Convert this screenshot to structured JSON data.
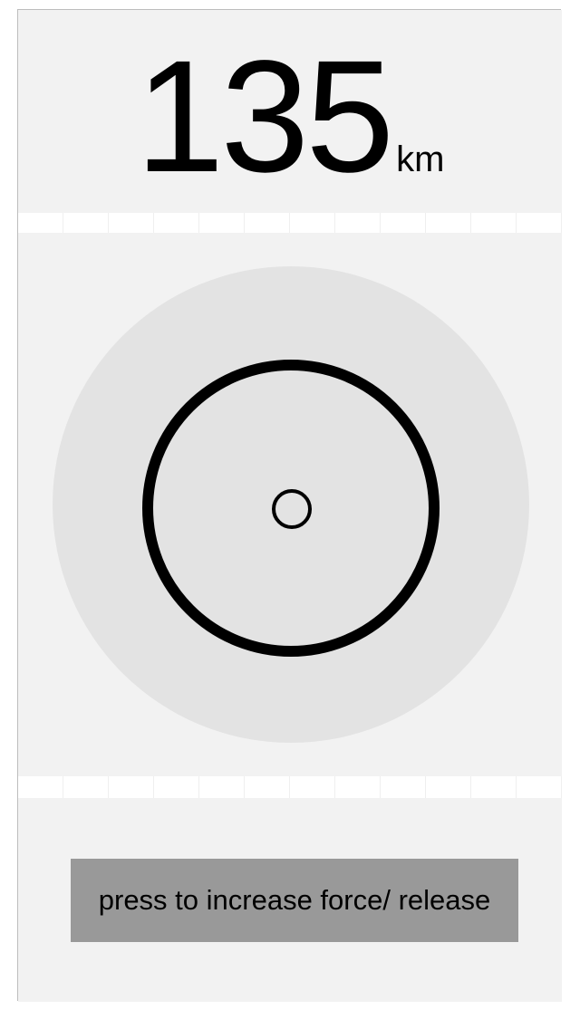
{
  "distance": {
    "value": "135",
    "unit": "km"
  },
  "dial": {
    "outer_color": "#e3e3e3",
    "ring_color": "#000000"
  },
  "button": {
    "label": "press to increase force/ release",
    "color": "#999999"
  },
  "colors": {
    "panel": "#f2f2f2",
    "strip": "#ffffff"
  }
}
